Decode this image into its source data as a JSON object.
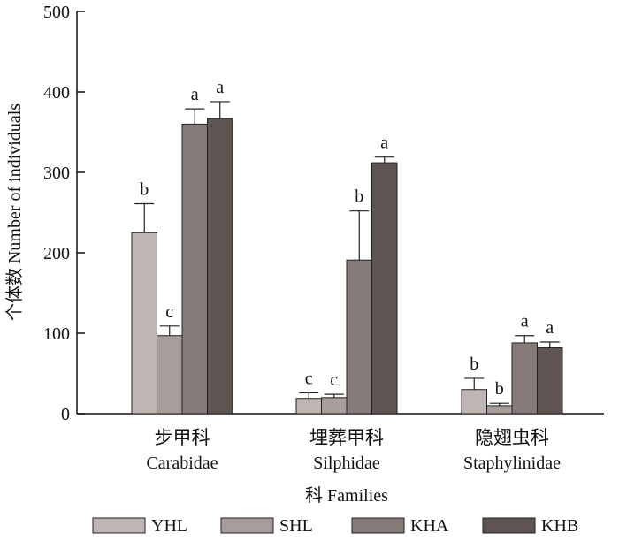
{
  "chart_data": {
    "type": "bar",
    "title": "",
    "ylabel": "个体数  Number of individuals",
    "xlabel": "科 Families",
    "ylim": [
      0,
      500
    ],
    "yticks": [
      0,
      100,
      200,
      300,
      400,
      500
    ],
    "categories": [
      {
        "cn": "步甲科",
        "en": "Carabidae"
      },
      {
        "cn": "埋葬甲科",
        "en": "Silphidae"
      },
      {
        "cn": "隐翅虫科",
        "en": "Staphylinidae"
      }
    ],
    "series": [
      {
        "name": "YHL",
        "color": "#bfb5b2",
        "values": [
          225,
          19,
          30
        ],
        "errors": [
          36,
          7,
          14
        ],
        "letters": [
          "b",
          "c",
          "b"
        ]
      },
      {
        "name": "SHL",
        "color": "#a89d9a",
        "values": [
          97,
          20,
          10
        ],
        "errors": [
          12,
          4,
          3
        ],
        "letters": [
          "c",
          "c",
          "b"
        ]
      },
      {
        "name": "KHA",
        "color": "#877b79",
        "values": [
          360,
          191,
          88
        ],
        "errors": [
          19,
          61,
          9
        ],
        "letters": [
          "a",
          "b",
          "a"
        ]
      },
      {
        "name": "KHB",
        "color": "#5e5553",
        "values": [
          367,
          312,
          82
        ],
        "errors": [
          21,
          7,
          7
        ],
        "letters": [
          "a",
          "a",
          "a"
        ]
      }
    ],
    "legend_position": "bottom",
    "grid": false
  }
}
